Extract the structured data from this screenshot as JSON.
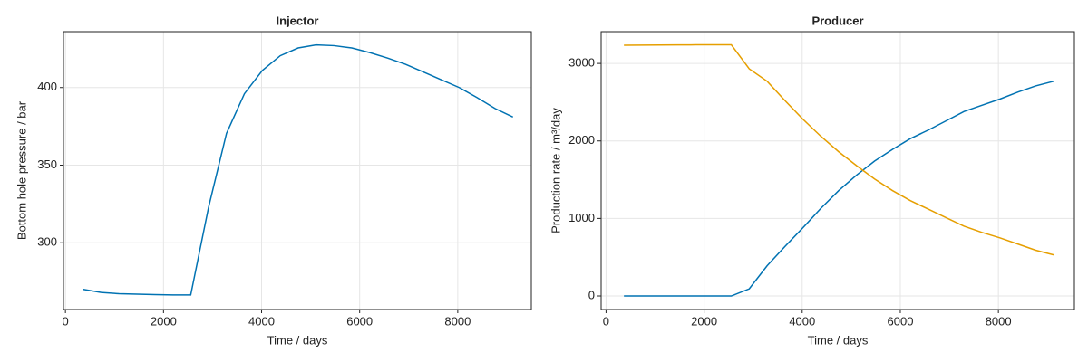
{
  "chart_data": [
    {
      "type": "line",
      "title": "Injector",
      "x_label": "Time / days",
      "y_label": "Bottom hole pressure / bar",
      "x": [
        365,
        730,
        1095,
        1460,
        1825,
        2190,
        2555,
        2920,
        3285,
        3650,
        4015,
        4380,
        4745,
        5110,
        5475,
        5840,
        6205,
        6570,
        6935,
        7300,
        7665,
        8030,
        8395,
        8760,
        9125
      ],
      "series": [
        {
          "color": "#0072b2",
          "values": [
            270,
            268,
            267.2,
            266.9,
            266.6,
            266.4,
            266.4,
            323,
            370.5,
            396,
            411,
            420.5,
            425.5,
            427.5,
            427,
            425.5,
            422.5,
            419,
            415,
            410,
            405,
            400,
            393.5,
            386.5,
            381
          ]
        }
      ],
      "xlim": [
        -40,
        9500
      ],
      "xticks": [
        0,
        2000,
        4000,
        6000,
        8000
      ],
      "ylim": [
        257,
        436
      ],
      "yticks": [
        300,
        350,
        400
      ],
      "grid": true
    },
    {
      "type": "line",
      "title": "Producer",
      "x_label": "Time / days",
      "y_label": "Production rate / m³/day",
      "x": [
        365,
        730,
        1095,
        1460,
        1825,
        2190,
        2555,
        2920,
        3285,
        3650,
        4015,
        4380,
        4745,
        5110,
        5475,
        5840,
        6205,
        6570,
        6935,
        7300,
        7665,
        8030,
        8395,
        8760,
        9125
      ],
      "series": [
        {
          "color": "#0072b2",
          "values": [
            0,
            0,
            0,
            0,
            0,
            0,
            0,
            92,
            390,
            640,
            880,
            1130,
            1360,
            1560,
            1740,
            1890,
            2030,
            2140,
            2260,
            2380,
            2460,
            2540,
            2630,
            2710,
            2770
          ]
        },
        {
          "color": "#e69f00",
          "values": [
            3235,
            3237,
            3238,
            3239,
            3240,
            3240,
            3240,
            2930,
            2770,
            2520,
            2280,
            2060,
            1860,
            1680,
            1510,
            1360,
            1230,
            1120,
            1010,
            900,
            820,
            750,
            670,
            590,
            530
          ]
        }
      ],
      "xlim": [
        -100,
        9550
      ],
      "xticks": [
        0,
        2000,
        4000,
        6000,
        8000
      ],
      "ylim": [
        -175,
        3410
      ],
      "yticks": [
        0,
        1000,
        2000,
        3000
      ],
      "grid": true
    }
  ]
}
